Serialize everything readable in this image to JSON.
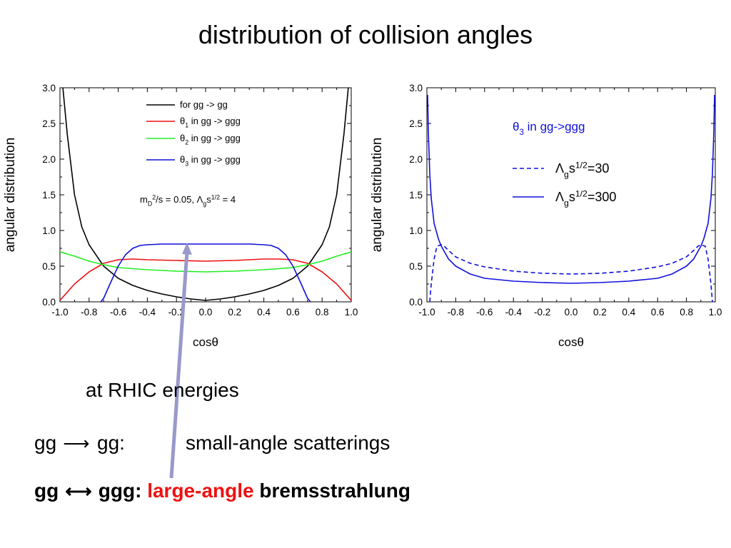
{
  "slide_title": "distribution of collision angles",
  "notes": {
    "line1": "at RHIC energies",
    "line2_lhs": "gg",
    "line2_rhs": "gg:",
    "line2_desc": "small-angle scatterings",
    "line3_lhs": "gg",
    "line3_rhs": "ggg:",
    "line3_highlight": "large-angle",
    "line3_rest": "bremsstrahlung"
  },
  "colors": {
    "black": "#000000",
    "red": "#ee1111",
    "green": "#22ee22",
    "blue": "#1010dd",
    "arrow": "#9999cc"
  },
  "chart_data": [
    {
      "type": "line",
      "xlabel": "cosθ",
      "ylabel": "angular distribution",
      "xlim": [
        -1.0,
        1.0
      ],
      "ylim": [
        0.0,
        3.0
      ],
      "xticks": [
        "-1.0",
        "-0.8",
        "-0.6",
        "-0.4",
        "-0.2",
        "0.0",
        "0.2",
        "0.4",
        "0.6",
        "0.8",
        "1.0"
      ],
      "yticks": [
        "0.0",
        "0.5",
        "1.0",
        "1.5",
        "2.0",
        "2.5",
        "3.0"
      ],
      "legend": [
        {
          "text": "for gg -> gg",
          "color": "#000000"
        },
        {
          "text": "θ1 in gg -> ggg",
          "color": "#ee1111"
        },
        {
          "text": "θ2 in gg -> ggg",
          "color": "#22ee22"
        },
        {
          "text": "θ3 in gg -> ggg",
          "color": "#1010dd"
        }
      ],
      "annotation": "mD2/s = 0.05,  Λgs1/2 = 4",
      "series": [
        {
          "name": "for gg -> gg",
          "color": "#000000",
          "x": [
            -0.98,
            -0.95,
            -0.9,
            -0.85,
            -0.8,
            -0.7,
            -0.6,
            -0.5,
            -0.4,
            -0.3,
            -0.2,
            -0.1,
            0.0,
            0.1,
            0.2,
            0.3,
            0.4,
            0.5,
            0.6,
            0.7,
            0.8,
            0.85,
            0.9,
            0.95,
            0.98
          ],
          "y": [
            3.0,
            2.35,
            1.5,
            1.05,
            0.8,
            0.5,
            0.33,
            0.23,
            0.16,
            0.11,
            0.07,
            0.04,
            0.02,
            0.04,
            0.07,
            0.11,
            0.16,
            0.23,
            0.33,
            0.5,
            0.8,
            1.05,
            1.5,
            2.35,
            3.0
          ]
        },
        {
          "name": "θ1 in gg -> ggg",
          "color": "#ee1111",
          "x": [
            -1.0,
            -0.9,
            -0.8,
            -0.7,
            -0.6,
            -0.5,
            -0.4,
            -0.2,
            0.0,
            0.2,
            0.4,
            0.5,
            0.6,
            0.7,
            0.8,
            0.9,
            1.0
          ],
          "y": [
            0.02,
            0.25,
            0.42,
            0.54,
            0.59,
            0.6,
            0.59,
            0.58,
            0.57,
            0.58,
            0.6,
            0.6,
            0.59,
            0.54,
            0.42,
            0.25,
            0.02
          ]
        },
        {
          "name": "θ2 in gg -> ggg",
          "color": "#22ee22",
          "x": [
            -1.0,
            -0.9,
            -0.8,
            -0.7,
            -0.6,
            -0.4,
            -0.2,
            0.0,
            0.2,
            0.4,
            0.6,
            0.7,
            0.8,
            0.9,
            1.0
          ],
          "y": [
            0.7,
            0.64,
            0.57,
            0.52,
            0.48,
            0.45,
            0.43,
            0.42,
            0.43,
            0.45,
            0.48,
            0.52,
            0.57,
            0.64,
            0.7
          ]
        },
        {
          "name": "θ3 in gg -> ggg",
          "color": "#1010dd",
          "x": [
            -0.72,
            -0.7,
            -0.65,
            -0.6,
            -0.55,
            -0.5,
            -0.45,
            -0.4,
            -0.3,
            -0.2,
            0.0,
            0.2,
            0.3,
            0.4,
            0.45,
            0.5,
            0.55,
            0.6,
            0.65,
            0.7,
            0.72
          ],
          "y": [
            0.0,
            0.05,
            0.28,
            0.5,
            0.66,
            0.75,
            0.79,
            0.8,
            0.81,
            0.81,
            0.81,
            0.81,
            0.81,
            0.8,
            0.79,
            0.75,
            0.66,
            0.5,
            0.28,
            0.05,
            0.0
          ]
        }
      ]
    },
    {
      "type": "line",
      "xlabel": "cosθ",
      "ylabel": "angular distribution",
      "xlim": [
        -1.0,
        1.0
      ],
      "ylim": [
        0.0,
        3.0
      ],
      "xticks": [
        "-1.0",
        "-0.8",
        "-0.6",
        "-0.4",
        "-0.2",
        "0.0",
        "0.2",
        "0.4",
        "0.6",
        "0.8",
        "1.0"
      ],
      "yticks": [
        "0.0",
        "0.5",
        "1.0",
        "1.5",
        "2.0",
        "2.5",
        "3.0"
      ],
      "panel_label": "θ3 in gg->ggg",
      "legend": [
        {
          "text": "Λgs1/2=30",
          "dash": true
        },
        {
          "text": "Λgs1/2=300",
          "dash": false
        }
      ],
      "series": [
        {
          "name": "Λgs1/2=30",
          "color": "#1010dd",
          "dashed": true,
          "x": [
            -0.98,
            -0.97,
            -0.95,
            -0.93,
            -0.9,
            -0.88,
            -0.85,
            -0.8,
            -0.7,
            -0.6,
            -0.4,
            -0.2,
            0.0,
            0.2,
            0.4,
            0.6,
            0.7,
            0.8,
            0.85,
            0.88,
            0.9,
            0.93,
            0.95,
            0.97,
            0.98
          ],
          "y": [
            0.0,
            0.25,
            0.6,
            0.78,
            0.8,
            0.78,
            0.72,
            0.63,
            0.54,
            0.49,
            0.43,
            0.4,
            0.39,
            0.4,
            0.43,
            0.49,
            0.54,
            0.63,
            0.72,
            0.78,
            0.8,
            0.78,
            0.6,
            0.25,
            0.0
          ]
        },
        {
          "name": "Λgs1/2=300",
          "color": "#1010dd",
          "dashed": false,
          "x": [
            -0.995,
            -0.99,
            -0.98,
            -0.97,
            -0.95,
            -0.92,
            -0.9,
            -0.85,
            -0.8,
            -0.7,
            -0.6,
            -0.4,
            -0.2,
            0.0,
            0.2,
            0.4,
            0.6,
            0.7,
            0.8,
            0.85,
            0.9,
            0.92,
            0.95,
            0.97,
            0.98,
            0.99,
            0.995
          ],
          "y": [
            2.9,
            2.4,
            1.8,
            1.45,
            1.1,
            0.88,
            0.78,
            0.6,
            0.5,
            0.39,
            0.33,
            0.29,
            0.27,
            0.26,
            0.27,
            0.29,
            0.33,
            0.39,
            0.5,
            0.6,
            0.78,
            0.88,
            1.1,
            1.45,
            1.8,
            2.4,
            2.9
          ]
        }
      ]
    }
  ]
}
